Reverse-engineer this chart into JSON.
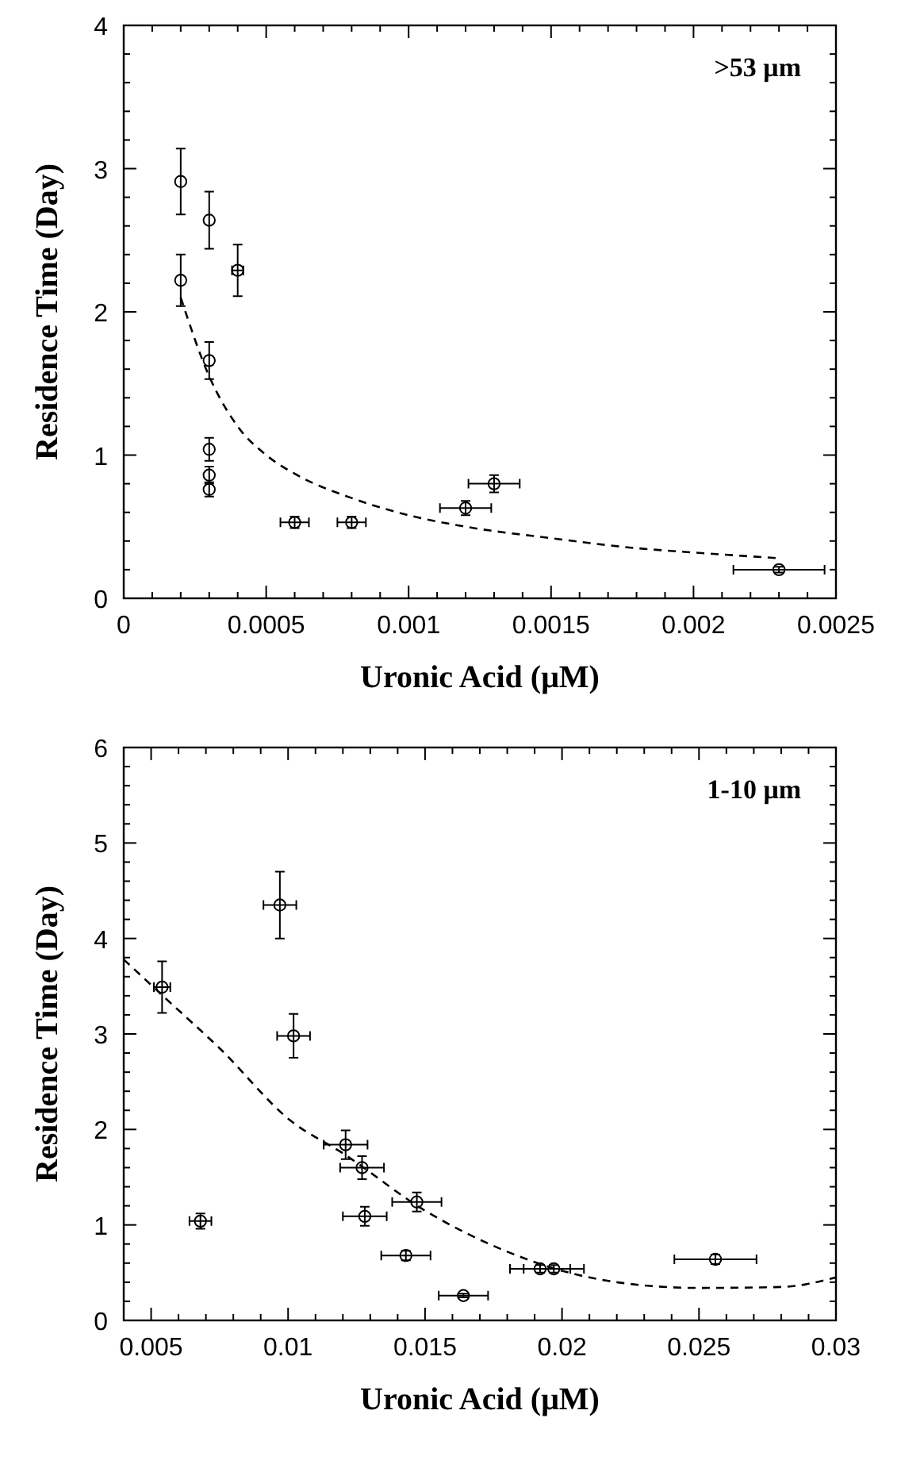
{
  "chart_data": [
    {
      "type": "scatter",
      "xlabel": "Uronic Acid (μM)",
      "ylabel": "Residence Time (Day)",
      "annotations": [
        ">53 μm"
      ],
      "marker": "circle",
      "xlim": [
        0,
        0.0025
      ],
      "ylim": [
        0,
        4
      ],
      "xticks": [
        0,
        {
          "value": 0.0001,
          "label": null
        },
        {
          "value": 0.0002,
          "label": null
        },
        {
          "value": 0.0003,
          "label": null
        },
        {
          "value": 0.0004,
          "label": null
        },
        0.0005,
        {
          "value": 0.0006,
          "label": null
        },
        {
          "value": 0.0007,
          "label": null
        },
        {
          "value": 0.0008,
          "label": null
        },
        {
          "value": 0.0009,
          "label": null
        },
        0.001,
        {
          "value": 0.0011,
          "label": null
        },
        {
          "value": 0.0012,
          "label": null
        },
        {
          "value": 0.0013,
          "label": null
        },
        {
          "value": 0.0014,
          "label": null
        },
        0.0015,
        {
          "value": 0.0016,
          "label": null
        },
        {
          "value": 0.0017,
          "label": null
        },
        {
          "value": 0.0018,
          "label": null
        },
        {
          "value": 0.0019,
          "label": null
        },
        0.002,
        {
          "value": 0.0021,
          "label": null
        },
        {
          "value": 0.0022,
          "label": null
        },
        {
          "value": 0.0023,
          "label": null
        },
        {
          "value": 0.0024,
          "label": null
        },
        0.0025
      ],
      "yticks": [
        0,
        {
          "value": 0.2,
          "label": null
        },
        {
          "value": 0.4,
          "label": null
        },
        {
          "value": 0.6,
          "label": null
        },
        {
          "value": 0.8,
          "label": null
        },
        1,
        {
          "value": 1.2,
          "label": null
        },
        {
          "value": 1.4,
          "label": null
        },
        {
          "value": 1.6,
          "label": null
        },
        {
          "value": 1.8,
          "label": null
        },
        2,
        {
          "value": 2.2,
          "label": null
        },
        {
          "value": 2.4,
          "label": null
        },
        {
          "value": 2.6,
          "label": null
        },
        {
          "value": 2.8,
          "label": null
        },
        3,
        {
          "value": 3.2,
          "label": null
        },
        {
          "value": 3.4,
          "label": null
        },
        {
          "value": 3.6,
          "label": null
        },
        {
          "value": 3.8,
          "label": null
        },
        4
      ],
      "series": [
        {
          "color": "#000000",
          "x": [
            0.0002,
            0.0002,
            0.0003,
            0.0004,
            0.0003,
            0.0003,
            0.0003,
            0.0003,
            0.0006,
            0.0008,
            0.0012,
            0.0013,
            0.0023
          ],
          "values": [
            2.91,
            2.22,
            2.64,
            2.29,
            1.66,
            1.04,
            0.86,
            0.76,
            0.53,
            0.53,
            0.63,
            0.8,
            0.2
          ],
          "errors": [
            0.23,
            0.18,
            0.2,
            0.18,
            0.13,
            0.08,
            0.06,
            0.05,
            0.04,
            0.04,
            0.05,
            0.06,
            0.02
          ],
          "xerrors": [
            null,
            null,
            null,
            2e-05,
            null,
            null,
            null,
            null,
            5e-05,
            5e-05,
            9e-05,
            9e-05,
            0.00016
          ]
        },
        {
          "type": "line",
          "color": "#000000",
          "line_style": "dashed",
          "marker": "none",
          "x": [
            0.0002,
            0.0003,
            0.0004,
            0.0005,
            0.0006,
            0.0008,
            0.001,
            0.0012,
            0.0015,
            0.0018,
            0.002,
            0.0023
          ],
          "values": [
            2.1,
            1.55,
            1.2,
            1.0,
            0.87,
            0.7,
            0.58,
            0.5,
            0.42,
            0.35,
            0.32,
            0.28
          ]
        }
      ]
    },
    {
      "type": "scatter",
      "xlabel": "Uronic Acid (μM)",
      "ylabel": "Residence Time (Day)",
      "annotations": [
        "1-10 μm"
      ],
      "marker": "circle",
      "xlim": [
        0.004,
        0.03
      ],
      "ylim": [
        0,
        6
      ],
      "xticks": [
        {
          "value": 0.004,
          "label": null
        },
        0.005,
        {
          "value": 0.006,
          "label": null
        },
        {
          "value": 0.007,
          "label": null
        },
        {
          "value": 0.008,
          "label": null
        },
        {
          "value": 0.009,
          "label": null
        },
        0.01,
        {
          "value": 0.011,
          "label": null
        },
        {
          "value": 0.012,
          "label": null
        },
        {
          "value": 0.013,
          "label": null
        },
        {
          "value": 0.014,
          "label": null
        },
        0.015,
        {
          "value": 0.016,
          "label": null
        },
        {
          "value": 0.017,
          "label": null
        },
        {
          "value": 0.018,
          "label": null
        },
        {
          "value": 0.019,
          "label": null
        },
        0.02,
        {
          "value": 0.021,
          "label": null
        },
        {
          "value": 0.022,
          "label": null
        },
        {
          "value": 0.023,
          "label": null
        },
        {
          "value": 0.024,
          "label": null
        },
        0.025,
        {
          "value": 0.026,
          "label": null
        },
        {
          "value": 0.027,
          "label": null
        },
        {
          "value": 0.028,
          "label": null
        },
        {
          "value": 0.029,
          "label": null
        },
        0.03
      ],
      "yticks": [
        0,
        {
          "value": 0.2,
          "label": null
        },
        {
          "value": 0.4,
          "label": null
        },
        {
          "value": 0.6,
          "label": null
        },
        {
          "value": 0.8,
          "label": null
        },
        1,
        {
          "value": 1.2,
          "label": null
        },
        {
          "value": 1.4,
          "label": null
        },
        {
          "value": 1.6,
          "label": null
        },
        {
          "value": 1.8,
          "label": null
        },
        2,
        {
          "value": 2.2,
          "label": null
        },
        {
          "value": 2.4,
          "label": null
        },
        {
          "value": 2.6,
          "label": null
        },
        {
          "value": 2.8,
          "label": null
        },
        3,
        {
          "value": 3.2,
          "label": null
        },
        {
          "value": 3.4,
          "label": null
        },
        {
          "value": 3.6,
          "label": null
        },
        {
          "value": 3.8,
          "label": null
        },
        4,
        {
          "value": 4.2,
          "label": null
        },
        {
          "value": 4.4,
          "label": null
        },
        {
          "value": 4.6,
          "label": null
        },
        {
          "value": 4.8,
          "label": null
        },
        5,
        {
          "value": 5.2,
          "label": null
        },
        {
          "value": 5.4,
          "label": null
        },
        {
          "value": 5.6,
          "label": null
        },
        {
          "value": 5.8,
          "label": null
        },
        6
      ],
      "series": [
        {
          "color": "#000000",
          "x": [
            0.0054,
            0.0068,
            0.0097,
            0.0102,
            0.0121,
            0.0127,
            0.0128,
            0.0147,
            0.0143,
            0.0164,
            0.0192,
            0.0197,
            0.0256
          ],
          "values": [
            3.49,
            1.04,
            4.35,
            2.98,
            1.84,
            1.6,
            1.09,
            1.24,
            0.68,
            0.26,
            0.54,
            0.54,
            0.64
          ],
          "errors": [
            0.27,
            0.08,
            0.35,
            0.23,
            0.15,
            0.12,
            0.1,
            0.1,
            0.05,
            0.02,
            0.04,
            0.04,
            0.05
          ],
          "xerrors": [
            0.0003,
            0.0004,
            0.0006,
            0.0006,
            0.0008,
            0.0008,
            0.0008,
            0.0009,
            0.0009,
            0.0009,
            0.0011,
            0.0011,
            0.0015
          ]
        },
        {
          "type": "line",
          "color": "#000000",
          "line_style": "dashed",
          "marker": "none",
          "x": [
            0.004,
            0.0055,
            0.0075,
            0.0101,
            0.012,
            0.015,
            0.018,
            0.02,
            0.022,
            0.025,
            0.028,
            0.03
          ],
          "values": [
            3.78,
            3.38,
            2.85,
            2.09,
            1.75,
            1.15,
            0.72,
            0.52,
            0.4,
            0.34,
            0.35,
            0.45
          ]
        }
      ]
    }
  ]
}
